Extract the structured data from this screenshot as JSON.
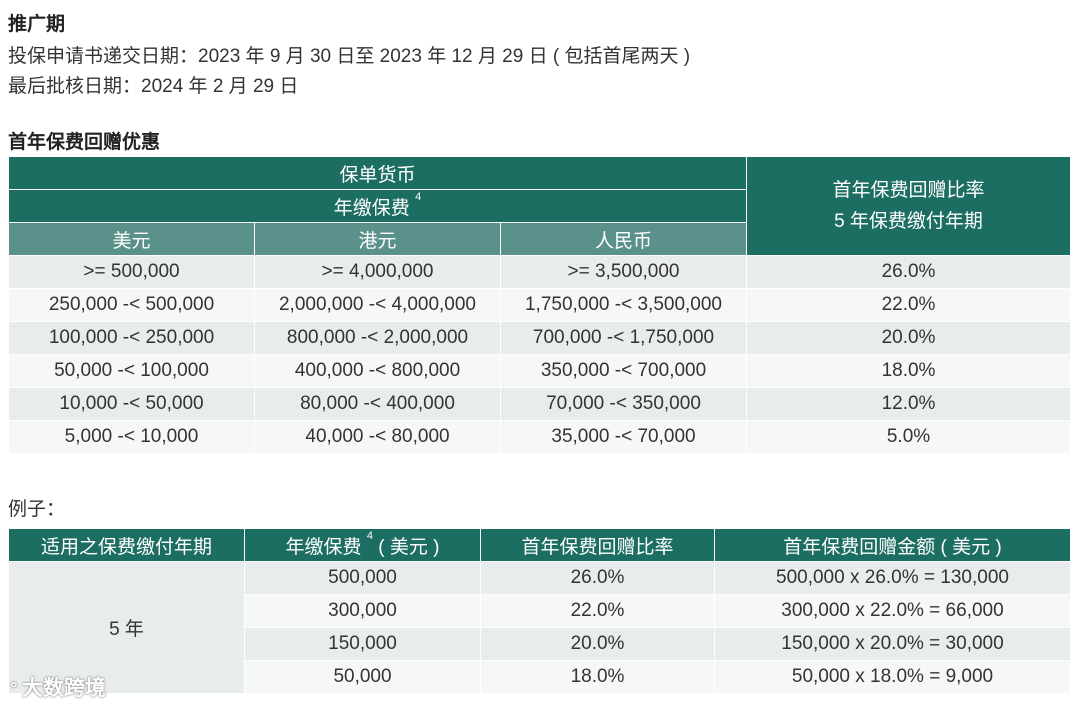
{
  "promo": {
    "title": "推广期",
    "application_line": "投保申请书递交日期：2023 年 9 月 30 日至 2023 年 12 月 29 日 ( 包括首尾两天 )",
    "approval_line": "最后批核日期：2024 年 2 月 29 日"
  },
  "discount_table": {
    "title": "首年保费回赠优惠",
    "header_currency": "保单货币",
    "header_premium": "年缴保费",
    "footnote_mark": "4",
    "header_rate_line1": "首年保费回赠比率",
    "header_rate_line2": "5 年保费缴付年期",
    "columns": [
      "美元",
      "港元",
      "人民币"
    ],
    "rows": [
      {
        "usd": ">= 500,000",
        "hkd": ">= 4,000,000",
        "rmb": ">= 3,500,000",
        "rate": "26.0%"
      },
      {
        "usd": "250,000 -< 500,000",
        "hkd": "2,000,000 -< 4,000,000",
        "rmb": "1,750,000 -< 3,500,000",
        "rate": "22.0%"
      },
      {
        "usd": "100,000 -< 250,000",
        "hkd": "800,000 -< 2,000,000",
        "rmb": "700,000 -< 1,750,000",
        "rate": "20.0%"
      },
      {
        "usd": "50,000 -< 100,000",
        "hkd": "400,000 -< 800,000",
        "rmb": "350,000 -< 700,000",
        "rate": "18.0%"
      },
      {
        "usd": "10,000 -< 50,000",
        "hkd": "80,000 -< 400,000",
        "rmb": "70,000 -< 350,000",
        "rate": "12.0%"
      },
      {
        "usd": "5,000 -< 10,000",
        "hkd": "40,000 -< 80,000",
        "rmb": "35,000 -< 70,000",
        "rate": "5.0%"
      }
    ]
  },
  "example": {
    "title": "例子：",
    "headers": {
      "term": "适用之保费缴付年期",
      "premium": "年缴保费",
      "premium_mark": "4",
      "premium_unit": "( 美元 )",
      "rate": "首年保费回赠比率",
      "amount": "首年保费回赠金额 ( 美元 )"
    },
    "term_value": "5 年",
    "rows": [
      {
        "premium": "500,000",
        "rate": "26.0%",
        "amount": "500,000 x 26.0% = 130,000"
      },
      {
        "premium": "300,000",
        "rate": "22.0%",
        "amount": "300,000 x 22.0% = 66,000"
      },
      {
        "premium": "150,000",
        "rate": "20.0%",
        "amount": "150,000 x 20.0% = 30,000"
      },
      {
        "premium": "50,000",
        "rate": "18.0%",
        "amount": "50,000 x 18.0% = 9,000"
      }
    ]
  },
  "watermark": {
    "text": "大数跨境"
  }
}
